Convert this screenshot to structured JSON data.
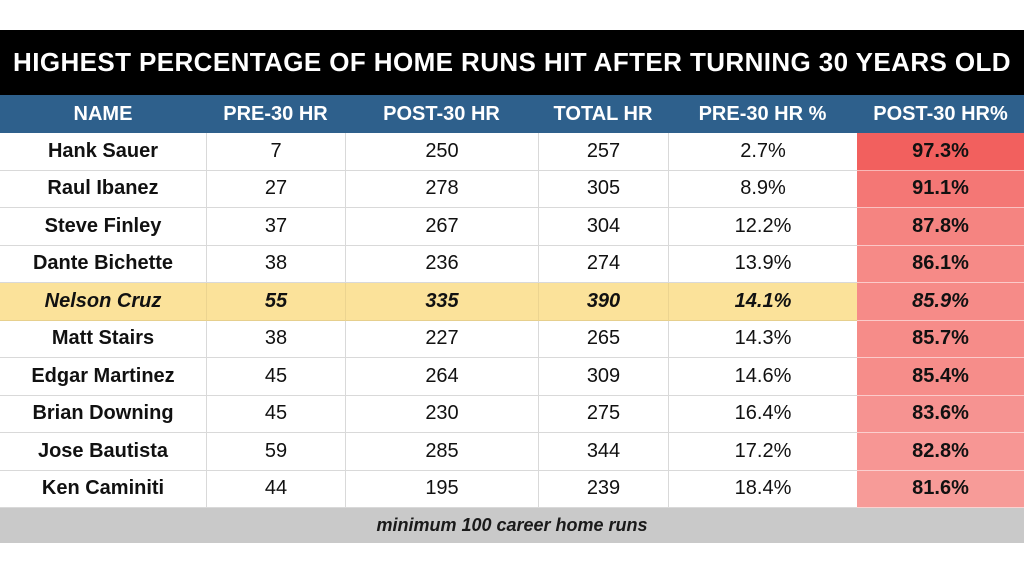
{
  "colors": {
    "title_bg": "#000000",
    "header_bg": "#2E608C",
    "highlight_row_bg": "#FBE29A",
    "footer_bg": "#C9C9C9",
    "grid_line": "#D9D9D9"
  },
  "chart_data": {
    "type": "table",
    "title": "HIGHEST PERCENTAGE OF HOME RUNS HIT AFTER TURNING 30 YEARS OLD",
    "footnote": "minimum 100 career home runs",
    "highlighted_row": "Nelson Cruz",
    "columns": [
      "NAME",
      "PRE-30 HR",
      "POST-30 HR",
      "TOTAL HR",
      "PRE-30 HR %",
      "POST-30 HR%"
    ],
    "rows": [
      {
        "name": "Hank Sauer",
        "pre30": "7",
        "post30": "250",
        "total": "257",
        "pre30_pct": "2.7%",
        "post30_pct": "97.3%",
        "post30_color": "#F2605E"
      },
      {
        "name": "Raul Ibanez",
        "pre30": "27",
        "post30": "278",
        "total": "305",
        "pre30_pct": "8.9%",
        "post30_pct": "91.1%",
        "post30_color": "#F47775"
      },
      {
        "name": "Steve Finley",
        "pre30": "37",
        "post30": "267",
        "total": "304",
        "pre30_pct": "12.2%",
        "post30_pct": "87.8%",
        "post30_color": "#F58481"
      },
      {
        "name": "Dante Bichette",
        "pre30": "38",
        "post30": "236",
        "total": "274",
        "pre30_pct": "13.9%",
        "post30_pct": "86.1%",
        "post30_color": "#F68A87"
      },
      {
        "name": "Nelson Cruz",
        "pre30": "55",
        "post30": "335",
        "total": "390",
        "pre30_pct": "14.1%",
        "post30_pct": "85.9%",
        "post30_color": "#F68B88"
      },
      {
        "name": "Matt Stairs",
        "pre30": "38",
        "post30": "227",
        "total": "265",
        "pre30_pct": "14.3%",
        "post30_pct": "85.7%",
        "post30_color": "#F68C89"
      },
      {
        "name": "Edgar Martinez",
        "pre30": "45",
        "post30": "264",
        "total": "309",
        "pre30_pct": "14.6%",
        "post30_pct": "85.4%",
        "post30_color": "#F68D8A"
      },
      {
        "name": "Brian Downing",
        "pre30": "45",
        "post30": "230",
        "total": "275",
        "pre30_pct": "16.4%",
        "post30_pct": "83.6%",
        "post30_color": "#F69391"
      },
      {
        "name": "Jose Bautista",
        "pre30": "59",
        "post30": "285",
        "total": "344",
        "pre30_pct": "17.2%",
        "post30_pct": "82.8%",
        "post30_color": "#F79694"
      },
      {
        "name": "Ken Caminiti",
        "pre30": "44",
        "post30": "195",
        "total": "239",
        "pre30_pct": "18.4%",
        "post30_pct": "81.6%",
        "post30_color": "#F79B98"
      }
    ]
  }
}
